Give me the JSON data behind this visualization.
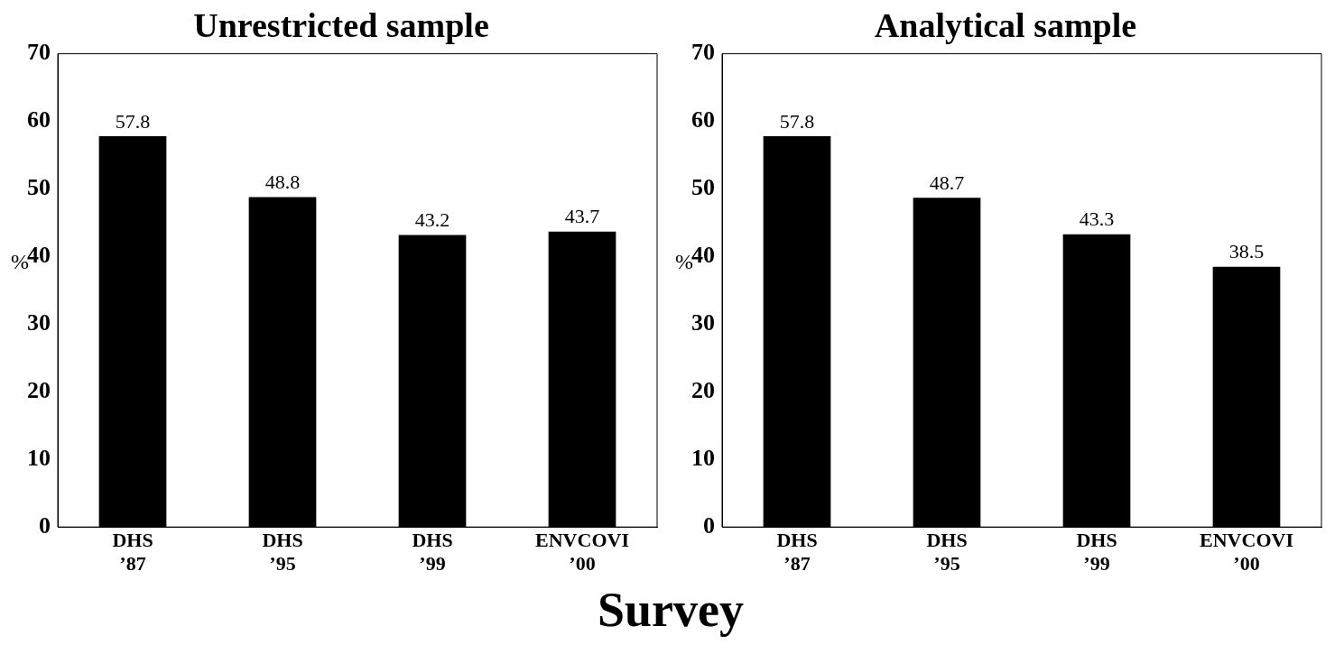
{
  "chart_data": [
    {
      "type": "bar",
      "title": "Unrestricted sample",
      "ylabel": "%",
      "xlabel": "Survey",
      "categories": [
        "DHS\n’87",
        "DHS\n’95",
        "DHS\n’99",
        "ENVCOVI\n’00"
      ],
      "values": [
        57.8,
        48.8,
        43.2,
        43.7
      ],
      "color": "#000000",
      "ylim": [
        0,
        70
      ],
      "yticks": [
        0,
        10,
        20,
        30,
        40,
        50,
        60,
        70
      ],
      "grid": false,
      "legend": false,
      "data_labels": true
    },
    {
      "type": "bar",
      "title": "Analytical sample",
      "ylabel": "%",
      "categories": [
        "DHS\n’87",
        "DHS\n’95",
        "DHS\n’99",
        "ENVCOVI\n’00"
      ],
      "values": [
        57.8,
        48.7,
        43.3,
        38.5
      ],
      "color": "#000000",
      "ylim": [
        0,
        70
      ],
      "yticks": [
        0,
        10,
        20,
        30,
        40,
        50,
        60,
        70
      ],
      "grid": false,
      "legend": false,
      "data_labels": true
    }
  ]
}
